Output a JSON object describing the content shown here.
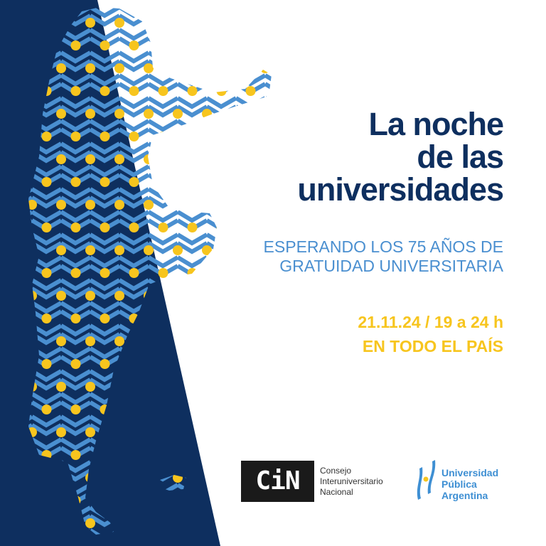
{
  "poster": {
    "title_lines": [
      "La noche",
      "de las",
      "universidades"
    ],
    "subtitle_lines": [
      "ESPERANDO LOS 75 AÑOS DE",
      "GRATUIDAD UNIVERSITARIA"
    ],
    "date_line": "21.11.24 / 19 a 24 h",
    "location_line": "EN TODO EL PAÍS"
  },
  "logos": {
    "cin": {
      "mark": "CiN",
      "lines": [
        "Consejo",
        "Interuniversitario",
        "Nacional"
      ]
    },
    "upa": {
      "lines": [
        "Universidad",
        "Pública",
        "Argentina"
      ]
    }
  },
  "colors": {
    "navy": "#0e2f5f",
    "light_blue": "#4a8fd0",
    "yellow": "#f7c51e",
    "white": "#ffffff"
  }
}
